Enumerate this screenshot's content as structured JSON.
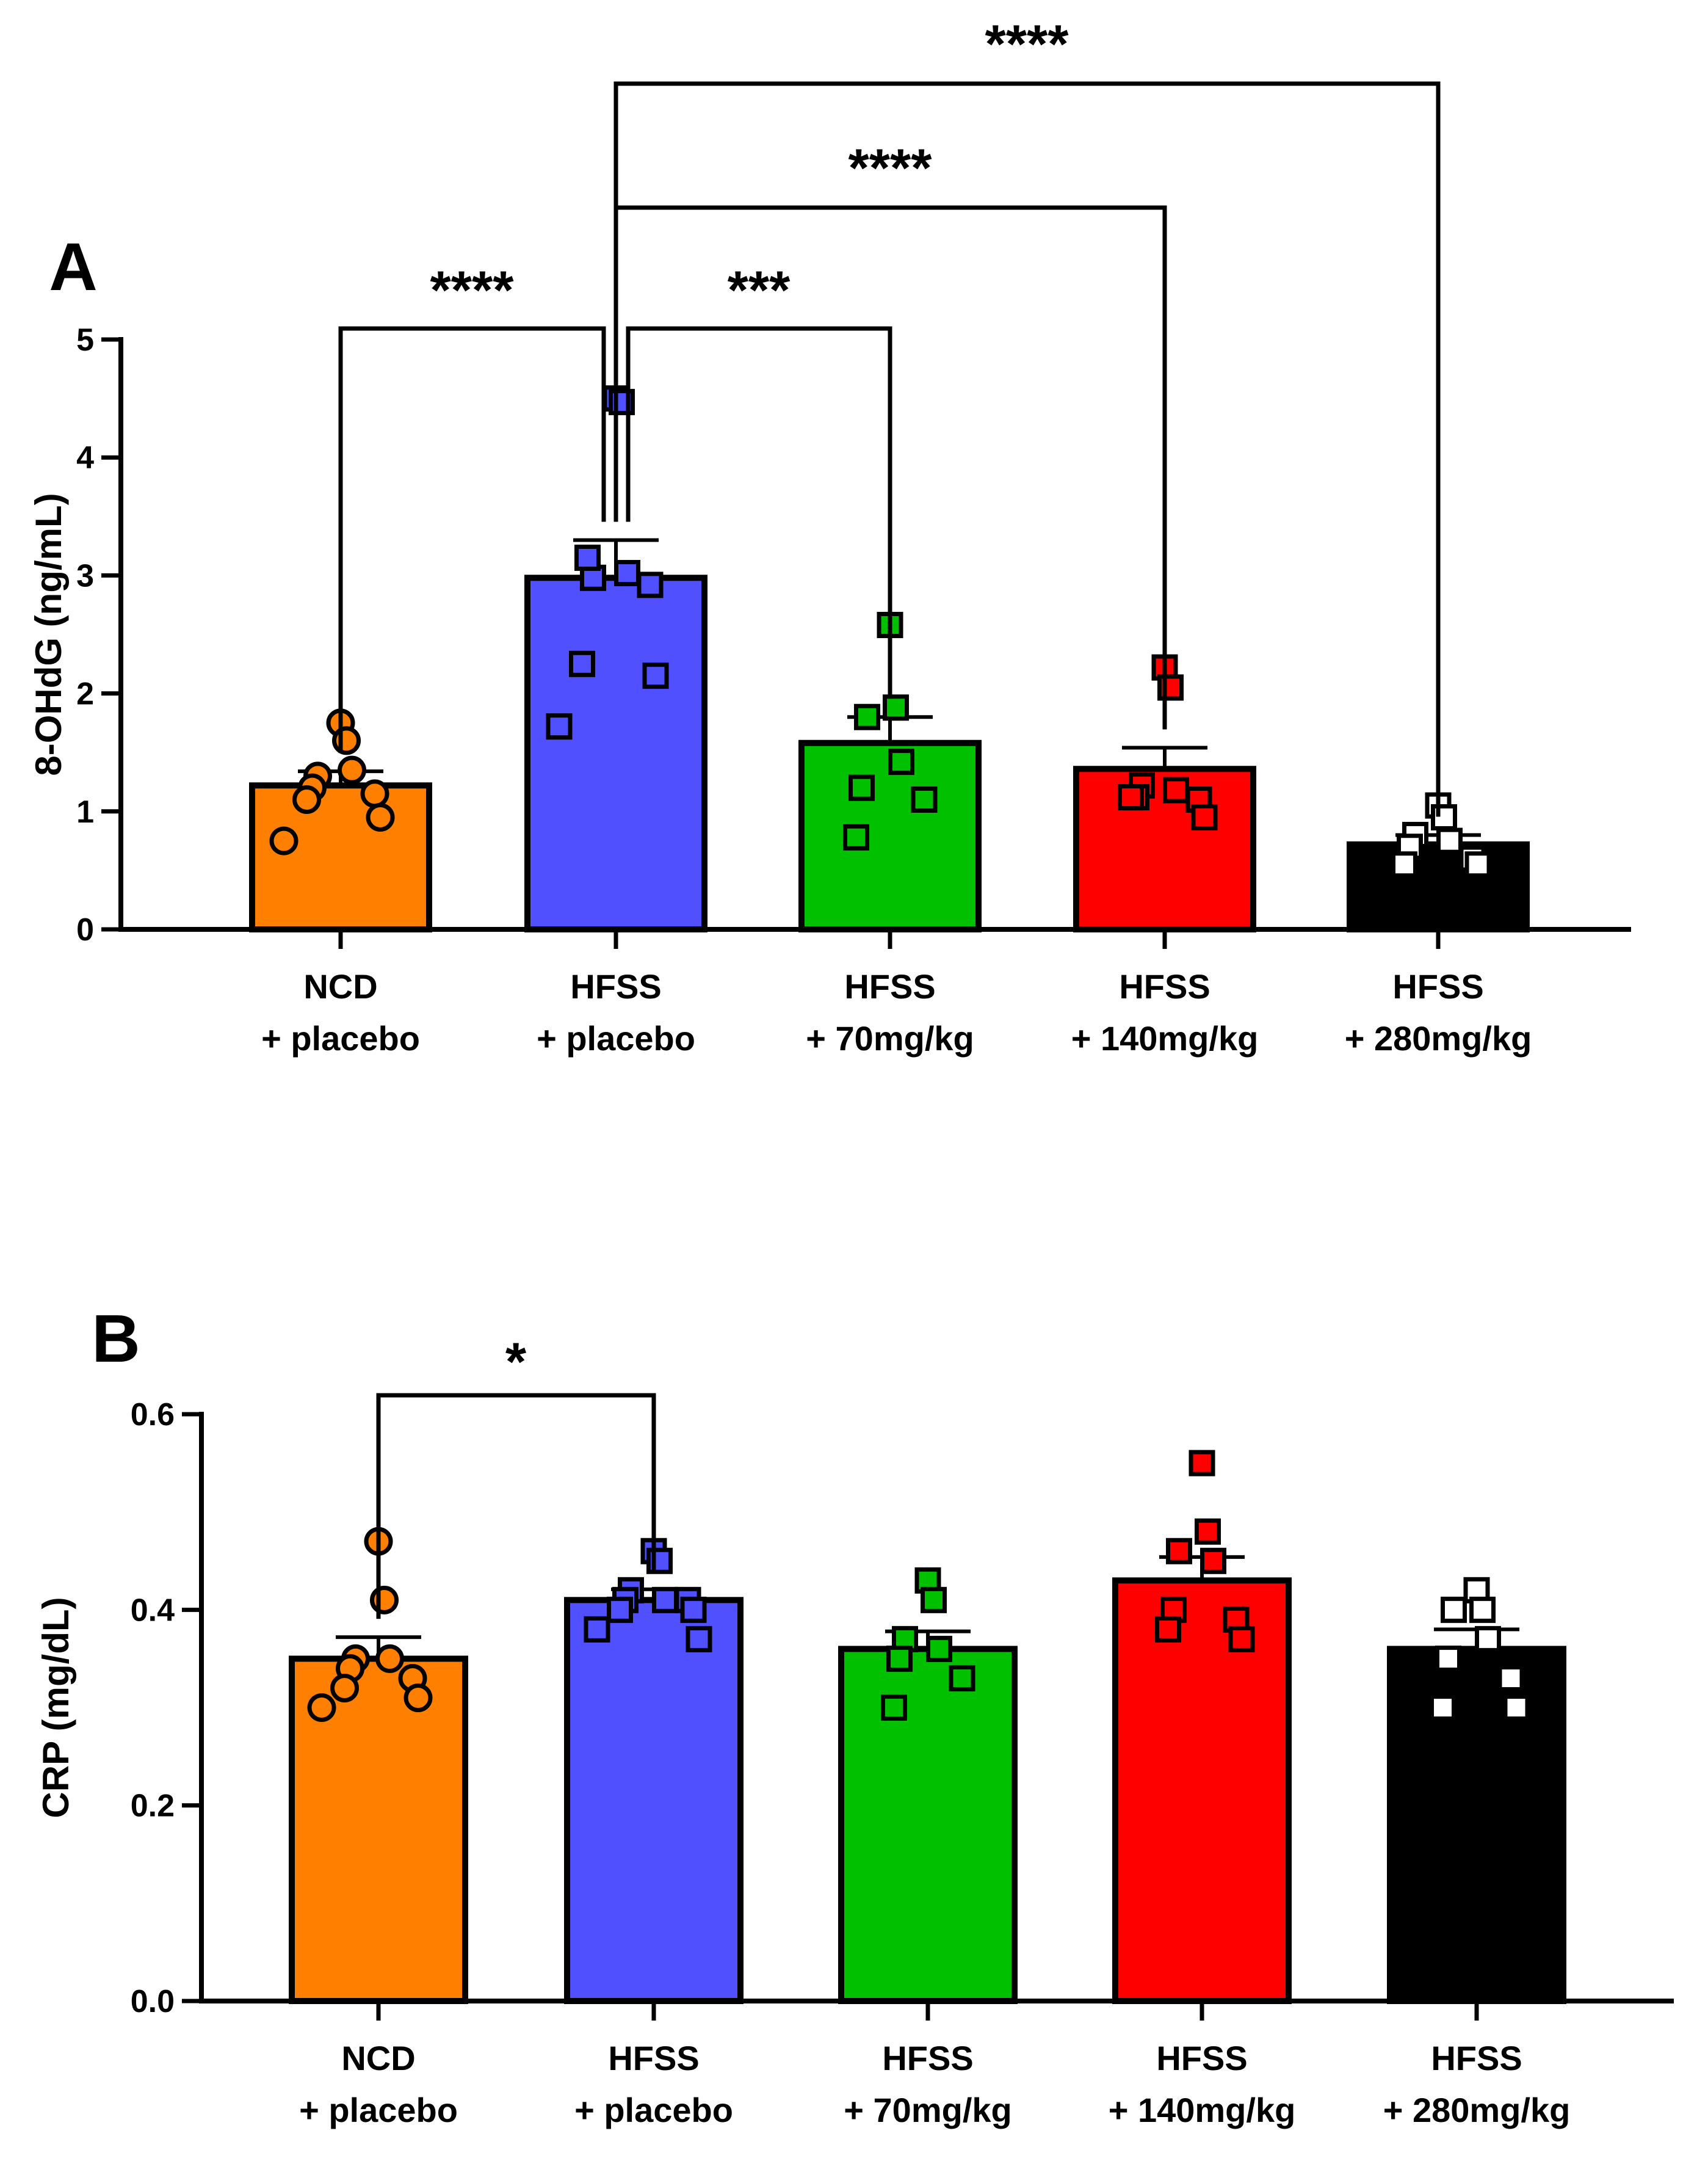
{
  "panels": [
    {
      "panel_label": "A",
      "chart_data": {
        "type": "bar",
        "ylabel": "8-OHdG (ng/mL)",
        "ylim": [
          0,
          5
        ],
        "yticks": [
          0,
          1,
          2,
          3,
          4,
          5
        ],
        "ytick_labels": [
          "0",
          "1",
          "2",
          "3",
          "4",
          "5"
        ],
        "categories": [
          {
            "line1": "NCD",
            "line2": "+ placebo"
          },
          {
            "line1": "HFSS",
            "line2": "+ placebo"
          },
          {
            "line1": "HFSS",
            "line2": "+ 70mg/kg"
          },
          {
            "line1": "HFSS",
            "line2": "+ 140mg/kg"
          },
          {
            "line1": "HFSS",
            "line2": "+ 280mg/kg"
          }
        ],
        "colors": [
          "#ff7f00",
          "#5050ff",
          "#00c000",
          "#ff0000",
          "#000000"
        ],
        "markers": [
          "circle",
          "square",
          "square",
          "square",
          "square"
        ],
        "point_fill": [
          "#ff7f00",
          "#5050ff",
          "#00c000",
          "#ff0000",
          "#ffffff"
        ],
        "point_stroke": [
          "#000000",
          "#000000",
          "#000000",
          "#000000",
          "#000000"
        ],
        "means": [
          1.22,
          2.98,
          1.58,
          1.36,
          0.72
        ],
        "sem": [
          0.12,
          0.32,
          0.22,
          0.18,
          0.08
        ],
        "points": [
          [
            1.75,
            1.6,
            1.3,
            1.35,
            1.2,
            1.15,
            1.1,
            0.95,
            0.75
          ],
          [
            4.5,
            4.47,
            2.98,
            3.02,
            3.15,
            2.92,
            2.25,
            2.15,
            1.72
          ],
          [
            2.58,
            1.88,
            1.8,
            1.42,
            1.2,
            1.1,
            0.78
          ],
          [
            2.22,
            2.05,
            1.22,
            1.18,
            1.12,
            1.1,
            1.12,
            0.95
          ],
          [
            1.05,
            0.95,
            0.8,
            0.75,
            0.7,
            0.6,
            0.55,
            0.55
          ]
        ],
        "significance": [
          {
            "from": 0,
            "to": 1,
            "label": "****"
          },
          {
            "from": 1,
            "to": 2,
            "label": "***"
          },
          {
            "from": 1,
            "to": 3,
            "label": "****"
          },
          {
            "from": 1,
            "to": 4,
            "label": "****"
          }
        ]
      }
    },
    {
      "panel_label": "B",
      "chart_data": {
        "type": "bar",
        "ylabel": "CRP (mg/dL)",
        "ylim": [
          0,
          0.6
        ],
        "yticks": [
          0,
          0.2,
          0.4,
          0.6
        ],
        "ytick_labels": [
          "0.0",
          "0.2",
          "0.4",
          "0.6"
        ],
        "categories": [
          {
            "line1": "NCD",
            "line2": "+ placebo"
          },
          {
            "line1": "HFSS",
            "line2": "+ placebo"
          },
          {
            "line1": "HFSS",
            "line2": "+ 70mg/kg"
          },
          {
            "line1": "HFSS",
            "line2": "+ 140mg/kg"
          },
          {
            "line1": "HFSS",
            "line2": "+ 280mg/kg"
          }
        ],
        "colors": [
          "#ff7f00",
          "#5050ff",
          "#00c000",
          "#ff0000",
          "#000000"
        ],
        "markers": [
          "circle",
          "square",
          "square",
          "square",
          "square"
        ],
        "point_fill": [
          "#ff7f00",
          "#5050ff",
          "#00c000",
          "#ff0000",
          "#ffffff"
        ],
        "point_stroke": [
          "#000000",
          "#000000",
          "#000000",
          "#000000",
          "#000000"
        ],
        "means": [
          0.35,
          0.41,
          0.36,
          0.43,
          0.36
        ],
        "sem": [
          0.022,
          0.011,
          0.018,
          0.024,
          0.02
        ],
        "points": [
          [
            0.47,
            0.41,
            0.35,
            0.35,
            0.34,
            0.33,
            0.32,
            0.31,
            0.3
          ],
          [
            0.46,
            0.45,
            0.42,
            0.41,
            0.41,
            0.41,
            0.4,
            0.4,
            0.38,
            0.37
          ],
          [
            0.43,
            0.41,
            0.37,
            0.36,
            0.35,
            0.33,
            0.3
          ],
          [
            0.55,
            0.48,
            0.46,
            0.45,
            0.4,
            0.39,
            0.38,
            0.37
          ],
          [
            0.42,
            0.4,
            0.4,
            0.37,
            0.35,
            0.33,
            0.3,
            0.3
          ]
        ],
        "significance": [
          {
            "from": 0,
            "to": 1,
            "label": "*"
          }
        ]
      }
    }
  ]
}
